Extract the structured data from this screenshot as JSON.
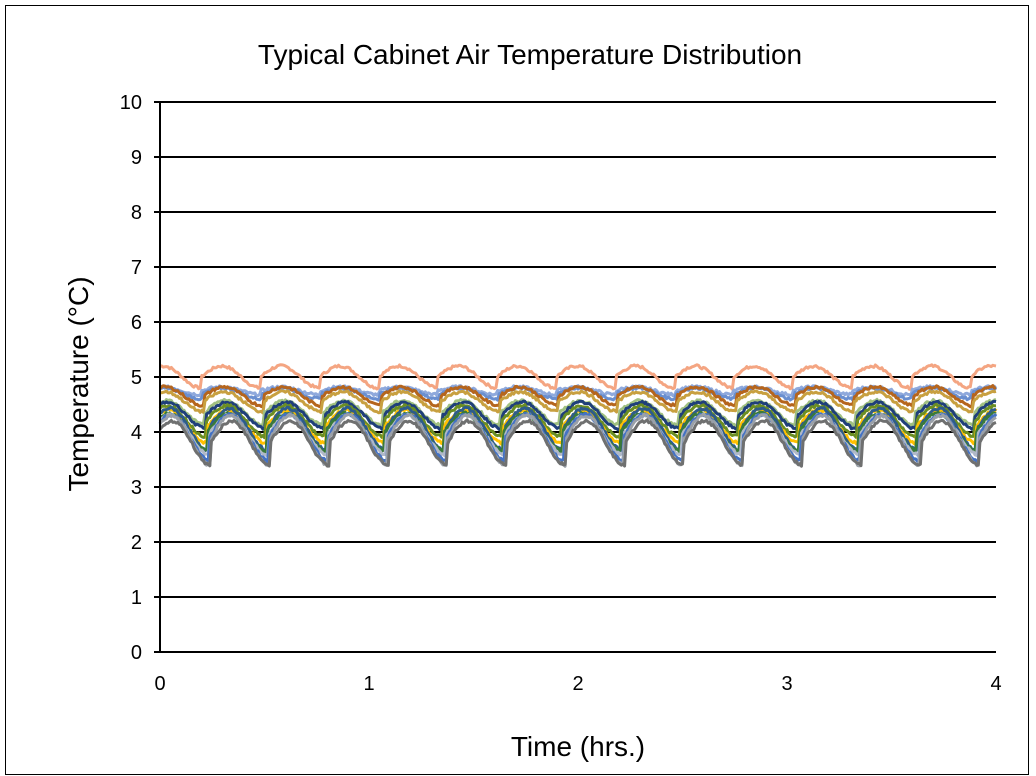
{
  "chart_data": {
    "type": "line",
    "title": "Typical Cabinet Air Temperature Distribution",
    "xlabel": "Time (hrs.)",
    "ylabel": "Temperature (°C)",
    "xlim": [
      0,
      4
    ],
    "ylim": [
      0,
      10
    ],
    "x_ticks": [
      "0",
      "1",
      "2",
      "3",
      "4"
    ],
    "y_ticks": [
      "0",
      "1",
      "2",
      "3",
      "4",
      "5",
      "6",
      "7",
      "8",
      "9",
      "10"
    ],
    "grid": "horizontal",
    "legend": "none",
    "cycle_period_hrs": 0.283,
    "series": [
      {
        "color": "#f4a582",
        "mean": 5.0,
        "amplitude": 0.2,
        "phase": 0.3
      },
      {
        "color": "#8fa9dc",
        "mean": 4.75,
        "amplitude": 0.07,
        "phase": 0.3
      },
      {
        "color": "#6a8fd0",
        "mean": 4.7,
        "amplitude": 0.1,
        "phase": 0.28
      },
      {
        "color": "#b5651d",
        "mean": 4.65,
        "amplitude": 0.17,
        "phase": 0.26
      },
      {
        "color": "#c8a040",
        "mean": 4.55,
        "amplitude": 0.18,
        "phase": 0.26
      },
      {
        "color": "#a0c080",
        "mean": 4.35,
        "amplitude": 0.22,
        "phase": 0.24
      },
      {
        "color": "#1f3f7a",
        "mean": 4.3,
        "amplitude": 0.24,
        "phase": 0.22
      },
      {
        "color": "#6b8e23",
        "mean": 4.2,
        "amplitude": 0.28,
        "phase": 0.22
      },
      {
        "color": "#ffc000",
        "mean": 4.1,
        "amplitude": 0.3,
        "phase": 0.2
      },
      {
        "color": "#2e5c8a",
        "mean": 4.05,
        "amplitude": 0.38,
        "phase": 0.18
      },
      {
        "color": "#3a7a3a",
        "mean": 4.0,
        "amplitude": 0.34,
        "phase": 0.2
      },
      {
        "color": "#b0b8c8",
        "mean": 3.95,
        "amplitude": 0.36,
        "phase": 0.17
      },
      {
        "color": "#4472c4",
        "mean": 3.9,
        "amplitude": 0.42,
        "phase": 0.16
      },
      {
        "color": "#9aa0a8",
        "mean": 3.85,
        "amplitude": 0.45,
        "phase": 0.15
      },
      {
        "color": "#6f7070",
        "mean": 3.8,
        "amplitude": 0.4,
        "phase": 0.14
      }
    ]
  }
}
